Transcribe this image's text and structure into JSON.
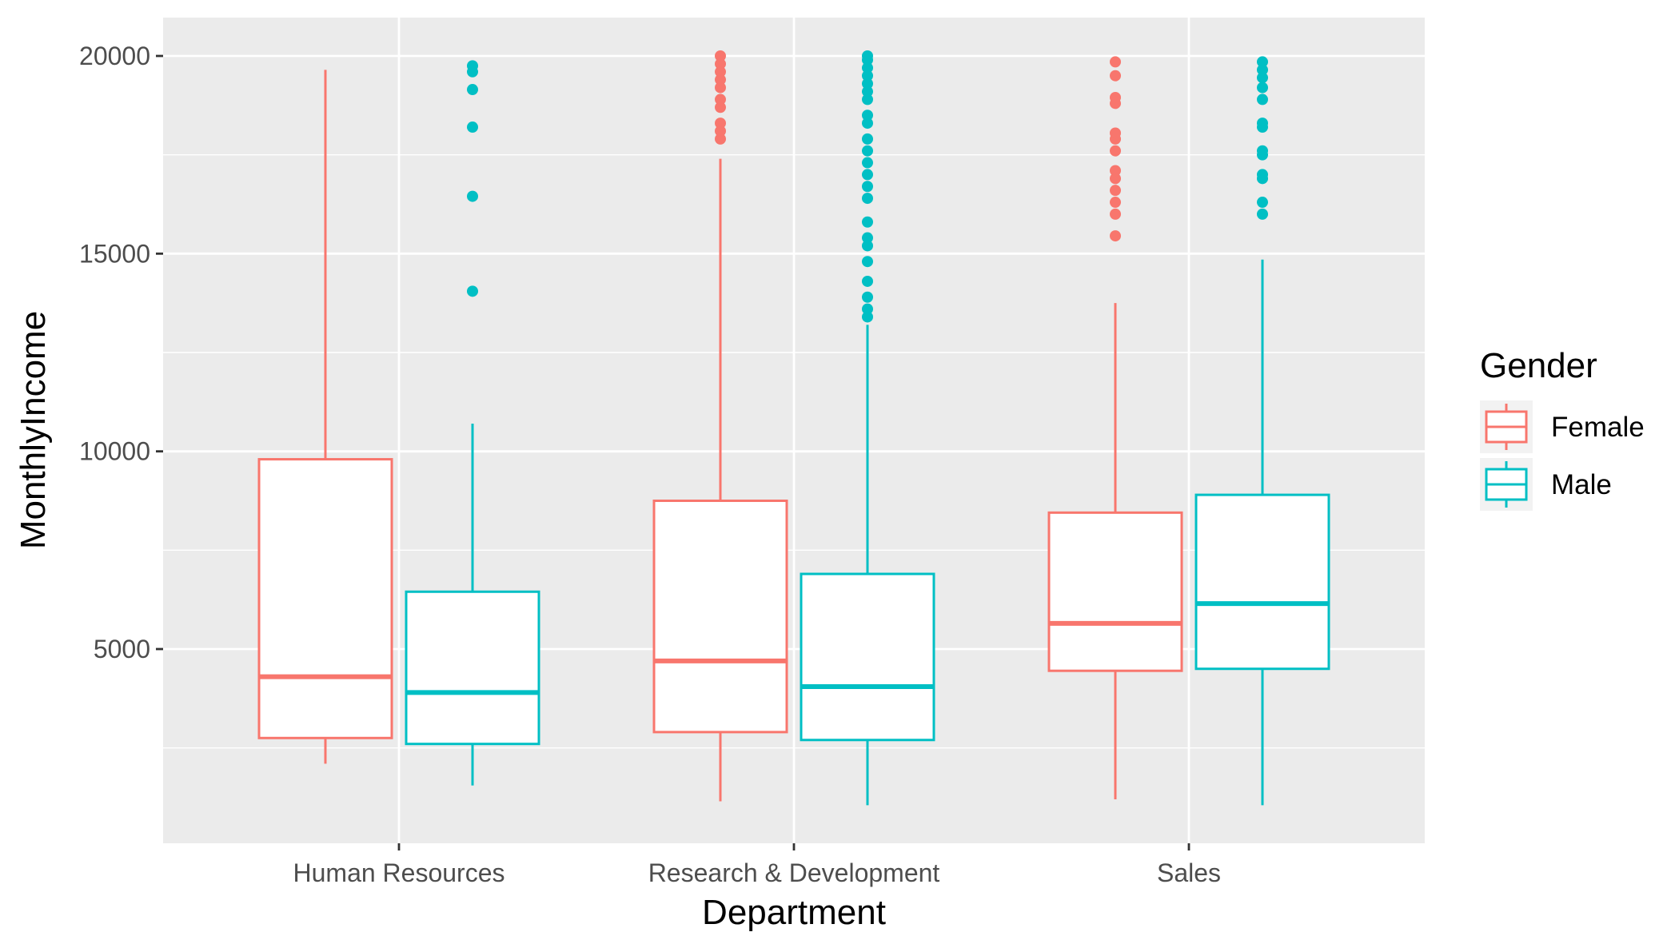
{
  "chart_data": {
    "type": "boxplot",
    "xlabel": "Department",
    "ylabel": "MonthlyIncome",
    "ylim": [
      0,
      21000
    ],
    "yticks": [
      5000,
      10000,
      15000,
      20000
    ],
    "grid": true,
    "legend_position": "right",
    "legend_title": "Gender",
    "categories": [
      "Human Resources",
      "Research & Development",
      "Sales"
    ],
    "series": [
      {
        "name": "Female",
        "color": "#F8766D",
        "boxes": [
          {
            "whisker_low": 2100,
            "q1": 2750,
            "median": 4300,
            "q3": 9800,
            "whisker_high": 19650,
            "outliers": []
          },
          {
            "whisker_low": 1150,
            "q1": 2900,
            "median": 4700,
            "q3": 8750,
            "whisker_high": 17400,
            "outliers": [
              17900,
              18100,
              18300,
              18700,
              18900,
              19200,
              19400,
              19600,
              19800,
              20000
            ]
          },
          {
            "whisker_low": 1200,
            "q1": 4450,
            "median": 5650,
            "q3": 8450,
            "whisker_high": 13750,
            "outliers": [
              15450,
              16000,
              16300,
              16600,
              16900,
              17100,
              17600,
              17900,
              18050,
              18800,
              18950,
              19500,
              19850
            ]
          }
        ]
      },
      {
        "name": "Male",
        "color": "#00BFC4",
        "boxes": [
          {
            "whisker_low": 1550,
            "q1": 2600,
            "median": 3900,
            "q3": 6450,
            "whisker_high": 10700,
            "outliers": [
              14050,
              16450,
              18200,
              19150,
              19600,
              19750
            ]
          },
          {
            "whisker_low": 1050,
            "q1": 2700,
            "median": 4050,
            "q3": 6900,
            "whisker_high": 13200,
            "outliers": [
              13400,
              13600,
              13900,
              14300,
              14800,
              15200,
              15400,
              15800,
              16400,
              16700,
              17000,
              17300,
              17600,
              17900,
              18300,
              18500,
              18900,
              19100,
              19300,
              19500,
              19700,
              19900,
              20000
            ]
          },
          {
            "whisker_low": 1050,
            "q1": 4500,
            "median": 6150,
            "q3": 8900,
            "whisker_high": 14850,
            "outliers": [
              16000,
              16300,
              16900,
              17000,
              17500,
              17600,
              18200,
              18300,
              18900,
              19200,
              19450,
              19650,
              19850
            ]
          }
        ]
      }
    ]
  }
}
